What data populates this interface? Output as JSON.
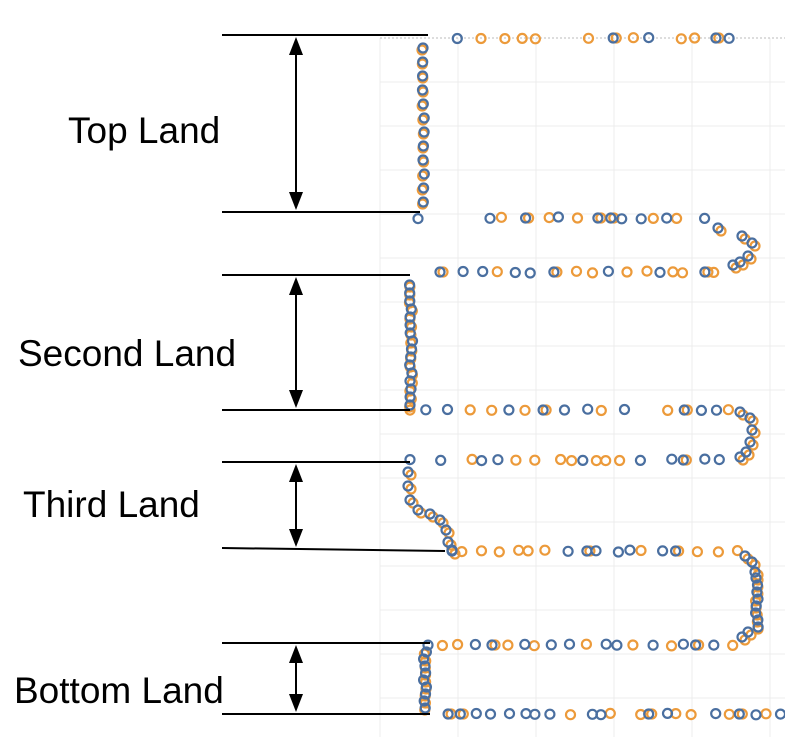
{
  "lands": [
    {
      "id": "top",
      "label": "Top Land"
    },
    {
      "id": "second",
      "label": "Second Land"
    },
    {
      "id": "third",
      "label": "Third Land"
    },
    {
      "id": "bottom",
      "label": "Bottom Land"
    }
  ],
  "colors": {
    "series_blue": "#4a6fa0",
    "series_orange": "#ec9a3a",
    "grid": "#ececec",
    "line": "#000000"
  }
}
